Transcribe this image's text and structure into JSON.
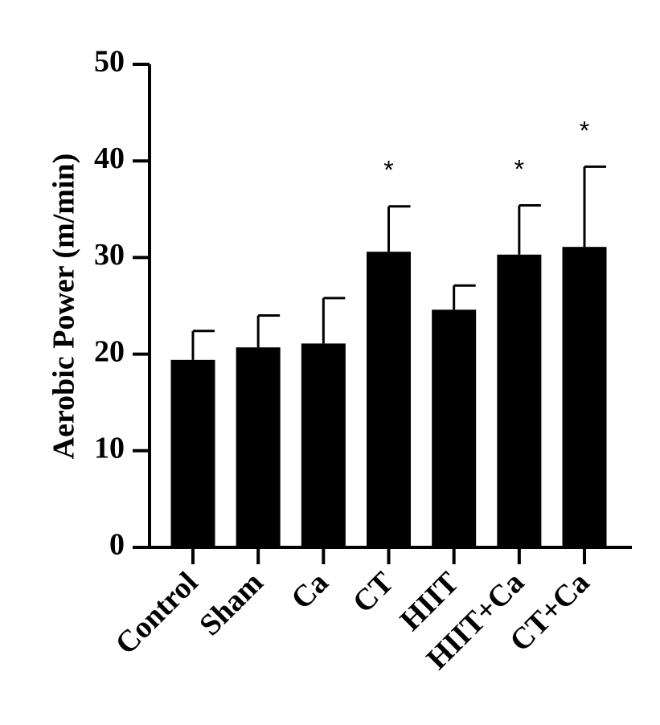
{
  "chart_data": {
    "type": "bar",
    "title": "",
    "xlabel": "",
    "ylabel": "Aerobic Power (m/min)",
    "categories": [
      "Control",
      "Sham",
      "Ca",
      "CT",
      "HIIT",
      "HIIT+Ca",
      "CT+Ca"
    ],
    "values": [
      19.4,
      20.7,
      21.1,
      30.6,
      24.6,
      30.3,
      31.1
    ],
    "errors": [
      3.0,
      3.3,
      4.7,
      4.7,
      2.5,
      5.1,
      8.3
    ],
    "significance": [
      "",
      "",
      "",
      "*",
      "",
      "*",
      "*"
    ],
    "ylim": [
      0,
      50
    ],
    "yticks": [
      0,
      10,
      20,
      30,
      40,
      50
    ],
    "grid": false,
    "bar_color": "#000000"
  }
}
